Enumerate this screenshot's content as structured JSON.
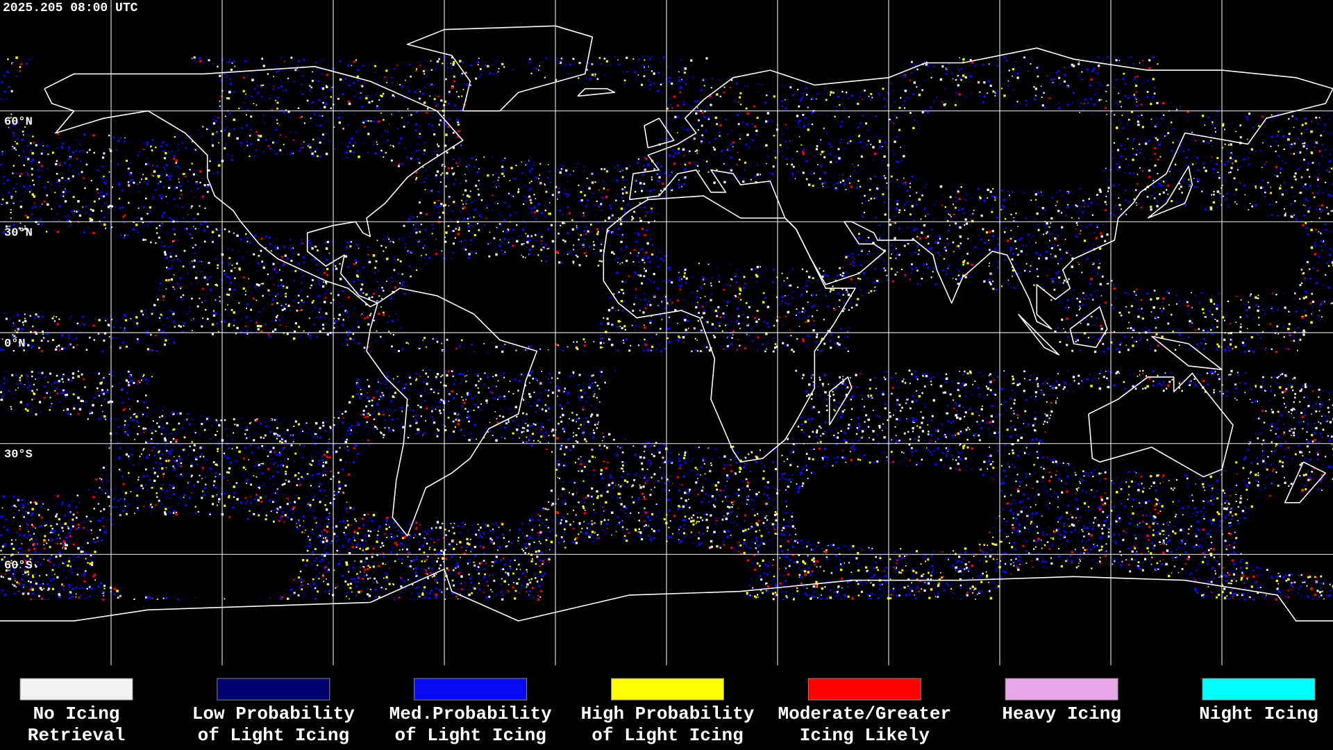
{
  "header": {
    "timestamp": "2025.205 08:00 UTC"
  },
  "map": {
    "lat_labels": [
      "60°N",
      "30°N",
      "0°N",
      "30°S",
      "60°S"
    ]
  },
  "legend": {
    "items": [
      {
        "label": [
          "No Icing",
          "Retrieval"
        ],
        "color": "#f2f2f2"
      },
      {
        "label": [
          "Low Probability",
          "of Light Icing"
        ],
        "color": "#00006e"
      },
      {
        "label": [
          "Med.Probability",
          "of Light Icing"
        ],
        "color": "#0a0af0"
      },
      {
        "label": [
          "High Probability",
          "of Light Icing"
        ],
        "color": "#ffff00"
      },
      {
        "label": [
          "Moderate/Greater",
          "Icing Likely"
        ],
        "color": "#ff0000"
      },
      {
        "label": [
          "Heavy Icing"
        ],
        "color": "#e8a8e8"
      },
      {
        "label": [
          "Night Icing"
        ],
        "color": "#00ffff"
      }
    ]
  }
}
